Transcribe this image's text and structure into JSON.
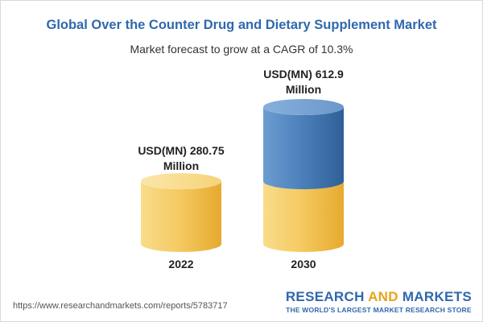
{
  "chart_data": {
    "type": "bar",
    "title": "Global Over the Counter Drug and Dietary Supplement Market",
    "subtitle": "Market forecast to grow at a CAGR of 10.3%",
    "categories": [
      "2022",
      "2030"
    ],
    "values": [
      280.75,
      612.9
    ],
    "value_labels": [
      [
        "USD(MN) 280.75",
        "Million"
      ],
      [
        "USD(MN) 612.9",
        "Million"
      ]
    ],
    "ylim": [
      0,
      612.9
    ],
    "colors": {
      "base": "#f5c85a",
      "growth": "#4a7fb8"
    }
  },
  "footer": {
    "url": "https://www.researchandmarkets.com/reports/5783717",
    "brand_research": "RESEARCH",
    "brand_and": "AND",
    "brand_markets": "MARKETS",
    "brand_tagline": "THE WORLD'S LARGEST MARKET RESEARCH STORE"
  }
}
